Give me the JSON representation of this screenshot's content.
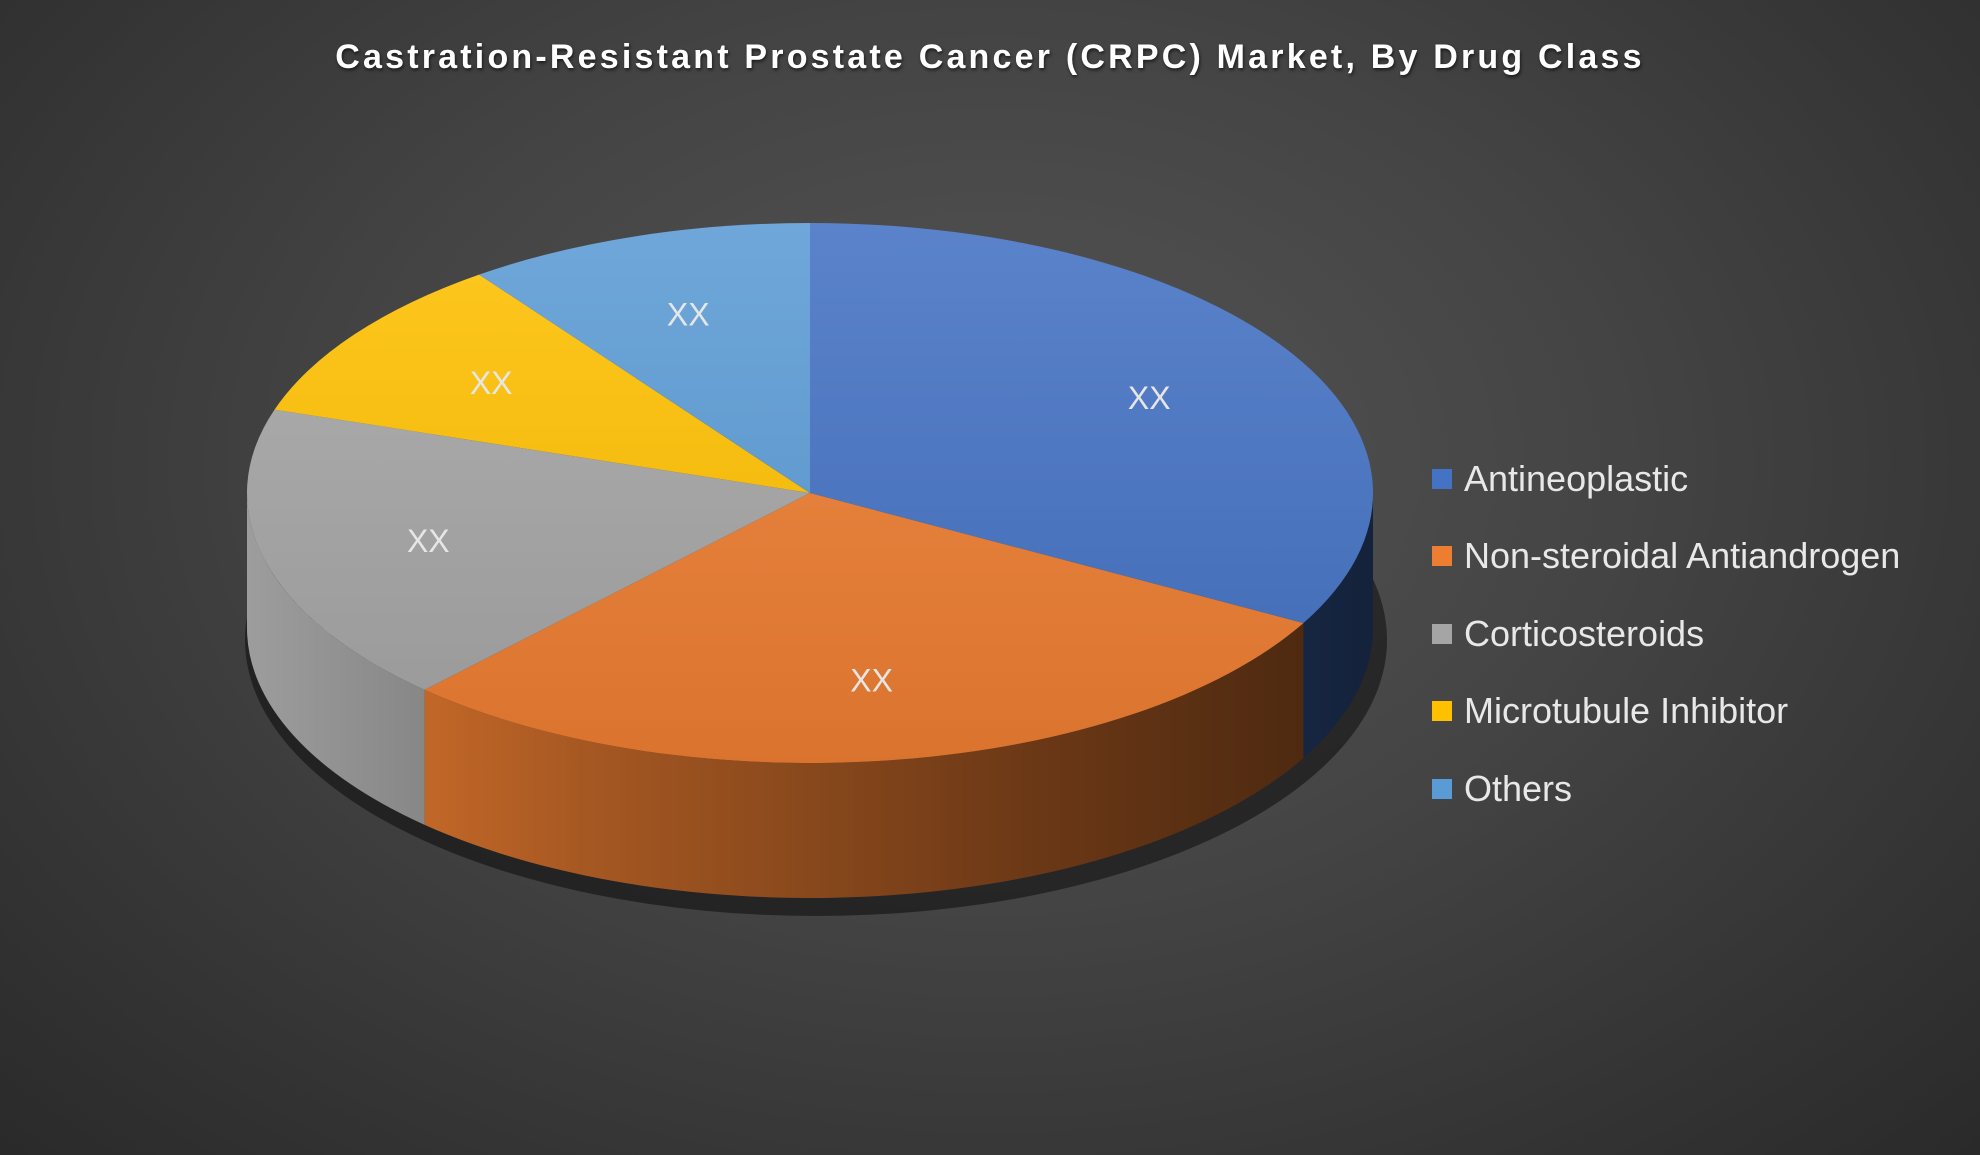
{
  "chart_data": {
    "type": "pie",
    "style": "3d",
    "title": "Castration-Resistant Prostate Cancer (CRPC) Market, By Drug Class",
    "legend_position": "right",
    "slices": [
      {
        "label": "Antineoplastic",
        "value": 33,
        "data_label": "XX",
        "color": "#4472C4"
      },
      {
        "label": "Non-steroidal Antiandrogen",
        "value": 29,
        "data_label": "XX",
        "color": "#ED7D31"
      },
      {
        "label": "Corticosteroids",
        "value": 18,
        "data_label": "XX",
        "color": "#A5A5A5"
      },
      {
        "label": "Microtubule Inhibitor",
        "value": 10,
        "data_label": "XX",
        "color": "#FFC000"
      },
      {
        "label": "Others",
        "value": 10,
        "data_label": "XX",
        "color": "#5B9BD5"
      }
    ]
  }
}
